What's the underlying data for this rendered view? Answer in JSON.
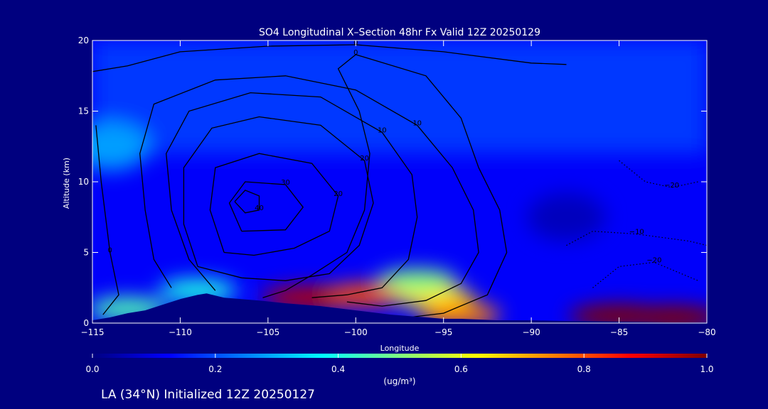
{
  "chart_data": {
    "type": "heatmap",
    "title": "SO4 Longitudinal X–Section 48hr  Fx Valid 12Z 20250129",
    "xlabel": "Longitude",
    "ylabel": "Altitude (km)",
    "xlim": [
      -115,
      -80
    ],
    "ylim": [
      0,
      20
    ],
    "x_ticks": [
      -115,
      -110,
      -105,
      -100,
      -95,
      -90,
      -85,
      -80
    ],
    "x_tick_labels": [
      "−115",
      "−110",
      "−105",
      "−100",
      "−95",
      "−90",
      "−85",
      "−80"
    ],
    "y_ticks": [
      0,
      5,
      10,
      15,
      20
    ],
    "y_tick_labels": [
      "0",
      "5",
      "10",
      "15",
      "20"
    ],
    "colorbar": {
      "min": 0.0,
      "max": 1.0,
      "ticks": [
        0.0,
        0.2,
        0.4,
        0.6,
        0.8,
        1.0
      ],
      "tick_labels": [
        "0.0",
        "0.2",
        "0.4",
        "0.6",
        "0.8",
        "1.0"
      ],
      "units": "(ug/m³)",
      "colormap": [
        "#000080",
        "#0000ff",
        "#0080ff",
        "#00ffff",
        "#80ff80",
        "#ffff00",
        "#ff8000",
        "#ff0000",
        "#800000"
      ]
    },
    "concentration_field": {
      "background": 0.12,
      "upper_layer": {
        "alt_range": [
          12,
          20
        ],
        "value": 0.18
      },
      "blobs": [
        {
          "lon": -102.5,
          "alt": 1.8,
          "value": 0.95
        },
        {
          "lon": -99.5,
          "alt": 2.0,
          "value": 0.8
        },
        {
          "lon": -95.5,
          "alt": 1.8,
          "value": 0.65
        },
        {
          "lon": -96.5,
          "alt": 3.0,
          "value": 0.5
        },
        {
          "lon": -94.0,
          "alt": 0.6,
          "value": 0.75
        },
        {
          "lon": -85.0,
          "alt": 0.5,
          "value": 1.0
        },
        {
          "lon": -82.0,
          "alt": 0.4,
          "value": 1.0
        },
        {
          "lon": -113.0,
          "alt": 1.0,
          "value": 0.45
        },
        {
          "lon": -109.0,
          "alt": 2.3,
          "value": 0.4
        },
        {
          "lon": -114.0,
          "alt": 12.5,
          "value": 0.28
        },
        {
          "lon": -88.0,
          "alt": 7.5,
          "value": 0.06
        }
      ]
    },
    "terrain": {
      "lon": [
        -115,
        -114,
        -113,
        -112,
        -111,
        -110,
        -109,
        -108.5,
        -107.5,
        -106.5,
        -105.5,
        -104,
        -102,
        -100,
        -98,
        -96,
        -95,
        -94,
        -92,
        -90,
        -88,
        -85,
        -82,
        -80
      ],
      "alt": [
        0.2,
        0.4,
        0.7,
        0.9,
        1.3,
        1.7,
        2.0,
        2.1,
        1.8,
        1.7,
        1.6,
        1.4,
        1.2,
        0.9,
        0.6,
        0.4,
        0.3,
        0.3,
        0.2,
        0.2,
        0.15,
        0.1,
        0.05,
        0.05
      ]
    },
    "contour_labels": [
      "0",
      "10",
      "20",
      "10",
      "20",
      "0",
      "10",
      "20",
      "−10",
      "−20"
    ],
    "contours": [
      {
        "label": "0",
        "style": "solid",
        "points": [
          [
            -115,
            17.8
          ],
          [
            -113,
            18.2
          ],
          [
            -110,
            19.2
          ],
          [
            -105,
            19.6
          ],
          [
            -100,
            19.7
          ],
          [
            -95,
            19.2
          ],
          [
            -90,
            18.4
          ],
          [
            -88,
            18.3
          ]
        ]
      },
      {
        "label": "0",
        "style": "solid",
        "points": [
          [
            -114.8,
            14
          ],
          [
            -114.5,
            10
          ],
          [
            -114,
            5
          ],
          [
            -113.5,
            2
          ],
          [
            -114.4,
            0.6
          ]
        ]
      },
      {
        "label": "0",
        "style": "solid",
        "points": [
          [
            -105.3,
            1.8
          ],
          [
            -104,
            2.3
          ],
          [
            -102.5,
            3.4
          ],
          [
            -100.5,
            5
          ],
          [
            -99.5,
            8
          ],
          [
            -99.2,
            12
          ],
          [
            -99.8,
            15
          ],
          [
            -101,
            18
          ],
          [
            -100,
            19
          ],
          [
            -96,
            17.5
          ],
          [
            -94,
            14.5
          ],
          [
            -93,
            11
          ],
          [
            -91.8,
            8
          ],
          [
            -91.4,
            5
          ],
          [
            -92.5,
            2
          ],
          [
            -95,
            0.7
          ],
          [
            -97,
            0.4
          ]
        ]
      },
      {
        "label": "10",
        "style": "solid",
        "points": [
          [
            -110.5,
            2.5
          ],
          [
            -111.5,
            4.5
          ],
          [
            -112,
            8
          ],
          [
            -112.3,
            12
          ],
          [
            -111.5,
            15.5
          ],
          [
            -108,
            17.2
          ],
          [
            -104,
            17.5
          ],
          [
            -100,
            16.5
          ],
          [
            -96.5,
            14
          ],
          [
            -94.5,
            11
          ],
          [
            -93.3,
            8
          ],
          [
            -93,
            5
          ],
          [
            -94,
            2.8
          ],
          [
            -96,
            1.6
          ],
          [
            -98.5,
            1.2
          ],
          [
            -100.5,
            1.5
          ]
        ]
      },
      {
        "label": "10",
        "style": "solid",
        "points": [
          [
            -108,
            2.3
          ],
          [
            -109.5,
            4.5
          ],
          [
            -110.5,
            8
          ],
          [
            -110.8,
            12
          ],
          [
            -109.5,
            15
          ],
          [
            -106,
            16.3
          ],
          [
            -102,
            16
          ],
          [
            -98.5,
            13.5
          ],
          [
            -96.8,
            10.5
          ],
          [
            -96.5,
            7.5
          ],
          [
            -97,
            4.5
          ],
          [
            -98.5,
            2.5
          ],
          [
            -100.5,
            2
          ],
          [
            -102.5,
            1.8
          ]
        ]
      },
      {
        "label": "20",
        "style": "solid",
        "points": [
          [
            -109,
            4
          ],
          [
            -109.8,
            7
          ],
          [
            -109.8,
            11
          ],
          [
            -108.2,
            13.8
          ],
          [
            -105.5,
            14.6
          ],
          [
            -102,
            14
          ],
          [
            -99.5,
            11.5
          ],
          [
            -99,
            8.5
          ],
          [
            -99.8,
            5.5
          ],
          [
            -101.5,
            3.5
          ],
          [
            -104,
            3
          ],
          [
            -106.5,
            3.2
          ],
          [
            -109,
            4
          ]
        ]
      },
      {
        "label": "20",
        "style": "solid",
        "points": [
          [
            -107.5,
            5
          ],
          [
            -108.3,
            8
          ],
          [
            -108,
            11
          ],
          [
            -105.5,
            12
          ],
          [
            -102.5,
            11.3
          ],
          [
            -101,
            9
          ],
          [
            -101.5,
            6.5
          ],
          [
            -103.5,
            5.3
          ],
          [
            -105.8,
            4.8
          ],
          [
            -107.5,
            5
          ]
        ]
      },
      {
        "label": "30",
        "style": "solid",
        "points": [
          [
            -106.5,
            6.5
          ],
          [
            -107.2,
            8.5
          ],
          [
            -106.3,
            10
          ],
          [
            -104,
            9.8
          ],
          [
            -103,
            8.2
          ],
          [
            -104,
            6.6
          ],
          [
            -106.5,
            6.5
          ]
        ]
      },
      {
        "label": "40",
        "style": "solid",
        "points": [
          [
            -106.9,
            8.6
          ],
          [
            -106.3,
            9.4
          ],
          [
            -105.5,
            9.0
          ],
          [
            -105.5,
            8.0
          ],
          [
            -106.3,
            7.8
          ],
          [
            -106.9,
            8.6
          ]
        ]
      },
      {
        "label": "−10",
        "style": "dotted",
        "points": [
          [
            -88,
            5.5
          ],
          [
            -86.5,
            6.5
          ],
          [
            -84,
            6.3
          ],
          [
            -81,
            5.8
          ],
          [
            -80,
            5.5
          ]
        ]
      },
      {
        "label": "−20",
        "style": "dotted",
        "points": [
          [
            -86.5,
            2.5
          ],
          [
            -85,
            4
          ],
          [
            -83,
            4.3
          ],
          [
            -80.5,
            3
          ]
        ]
      },
      {
        "label": "−20",
        "style": "dotted",
        "points": [
          [
            -85,
            11.5
          ],
          [
            -83.5,
            10
          ],
          [
            -82,
            9.6
          ],
          [
            -80.5,
            10
          ]
        ]
      }
    ]
  },
  "footer": {
    "location_text": "LA (34°N) Initialized 12Z 20250127"
  }
}
